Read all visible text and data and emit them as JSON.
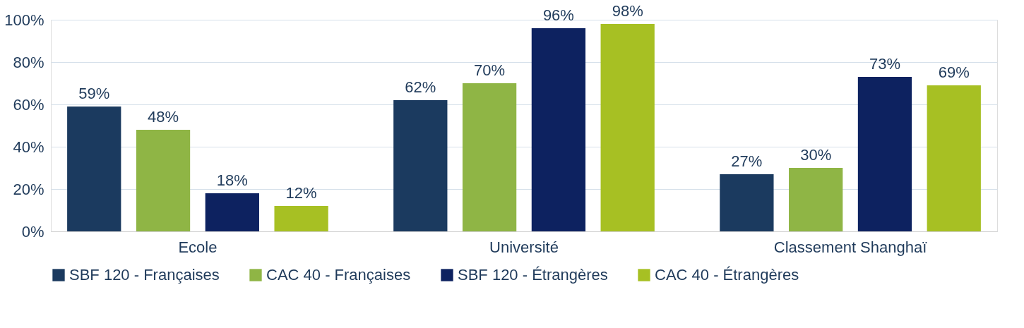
{
  "chart_data": {
    "type": "bar",
    "categories": [
      "Ecole",
      "Université",
      "Classement Shanghaï"
    ],
    "series": [
      {
        "name": "SBF 120 - Françaises",
        "color": "#1b3a5f",
        "values": [
          59,
          62,
          27
        ],
        "value_labels": [
          "59%",
          "62%",
          "27%"
        ]
      },
      {
        "name": "CAC 40 - Françaises",
        "color": "#8fb545",
        "values": [
          48,
          70,
          30
        ],
        "value_labels": [
          "48%",
          "70%",
          "30%"
        ]
      },
      {
        "name": "SBF 120 - Étrangères",
        "color": "#0d2260",
        "values": [
          18,
          96,
          73
        ],
        "value_labels": [
          "18%",
          "96%",
          "73%"
        ]
      },
      {
        "name": "CAC 40 - Étrangères",
        "color": "#a7c023",
        "values": [
          12,
          98,
          69
        ],
        "value_labels": [
          "12%",
          "98%",
          "69%"
        ]
      }
    ],
    "ylim": [
      0,
      100
    ],
    "yticks": [
      {
        "value": 0,
        "label": "0%"
      },
      {
        "value": 20,
        "label": "20%"
      },
      {
        "value": 40,
        "label": "40%"
      },
      {
        "value": 60,
        "label": "60%"
      },
      {
        "value": 80,
        "label": "80%"
      },
      {
        "value": 100,
        "label": "100%"
      }
    ],
    "grid": "y",
    "legend": "bottom"
  }
}
